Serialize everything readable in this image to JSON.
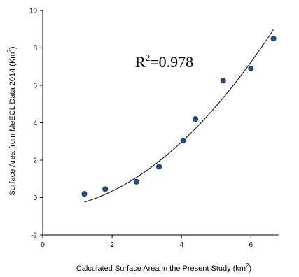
{
  "chart_data": {
    "type": "scatter",
    "xlabel": "Calculated Surface Area in the Present Study (km²)",
    "ylabel": "Surface Area from MeECL Data 2014 (Km²)",
    "xlim": [
      0,
      6.8
    ],
    "ylim": [
      -2,
      10
    ],
    "x_ticks": [
      0,
      2,
      4,
      6
    ],
    "y_ticks": [
      -2,
      0,
      2,
      4,
      6,
      8,
      10
    ],
    "x_tick_labels": [
      "0",
      "2",
      "4",
      "6"
    ],
    "y_tick_labels": [
      "-2",
      "0",
      "2",
      "4",
      "6",
      "8",
      "10"
    ],
    "grid": false,
    "points": [
      {
        "x": 1.2,
        "y": 0.2
      },
      {
        "x": 1.8,
        "y": 0.45
      },
      {
        "x": 2.7,
        "y": 0.85
      },
      {
        "x": 3.35,
        "y": 1.65
      },
      {
        "x": 4.05,
        "y": 3.05
      },
      {
        "x": 4.4,
        "y": 4.2
      },
      {
        "x": 5.2,
        "y": 6.25
      },
      {
        "x": 6.0,
        "y": 6.9
      },
      {
        "x": 6.65,
        "y": 8.5
      }
    ],
    "trendline": {
      "type": "quadratic",
      "coefficients": [
        -0.627,
        0.075,
        0.206
      ],
      "x_range": [
        1.2,
        6.65
      ]
    },
    "annotation": {
      "text": "R",
      "superscript": "2",
      "value": "=0.978"
    },
    "marker_color": "#1f4e8c",
    "line_color": "#000000"
  }
}
